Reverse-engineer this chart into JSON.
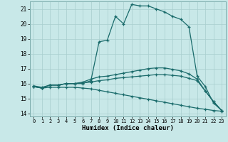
{
  "xlabel": "Humidex (Indice chaleur)",
  "background_color": "#c8e8e8",
  "grid_color": "#a8cece",
  "line_color": "#1a6b6b",
  "xlim": [
    -0.5,
    23.5
  ],
  "ylim": [
    13.8,
    21.5
  ],
  "yticks": [
    14,
    15,
    16,
    17,
    18,
    19,
    20,
    21
  ],
  "xticks": [
    0,
    1,
    2,
    3,
    4,
    5,
    6,
    7,
    8,
    9,
    10,
    11,
    12,
    13,
    14,
    15,
    16,
    17,
    18,
    19,
    20,
    21,
    22,
    23
  ],
  "series": [
    {
      "x": [
        0,
        1,
        2,
        3,
        4,
        5,
        6,
        7,
        8,
        9,
        10,
        11,
        12,
        13,
        14,
        15,
        16,
        17,
        18,
        19,
        20,
        21,
        22,
        23
      ],
      "y": [
        15.8,
        15.7,
        15.9,
        15.9,
        16.0,
        16.0,
        16.0,
        16.2,
        18.8,
        18.9,
        20.5,
        20.0,
        21.3,
        21.2,
        21.2,
        21.0,
        20.8,
        20.5,
        20.3,
        19.8,
        16.5,
        15.8,
        14.7,
        14.2
      ]
    },
    {
      "x": [
        0,
        1,
        2,
        3,
        4,
        5,
        6,
        7,
        8,
        9,
        10,
        11,
        12,
        13,
        14,
        15,
        16,
        17,
        18,
        19,
        20,
        21,
        22,
        23
      ],
      "y": [
        15.8,
        15.7,
        15.9,
        15.9,
        16.0,
        16.0,
        16.1,
        16.3,
        16.45,
        16.5,
        16.6,
        16.7,
        16.8,
        16.9,
        17.0,
        17.05,
        17.05,
        16.95,
        16.85,
        16.65,
        16.3,
        15.5,
        14.8,
        14.2
      ]
    },
    {
      "x": [
        0,
        1,
        2,
        3,
        4,
        5,
        6,
        7,
        8,
        9,
        10,
        11,
        12,
        13,
        14,
        15,
        16,
        17,
        18,
        19,
        20,
        21,
        22,
        23
      ],
      "y": [
        15.85,
        15.75,
        15.9,
        15.9,
        16.0,
        16.0,
        16.05,
        16.1,
        16.2,
        16.25,
        16.35,
        16.4,
        16.45,
        16.5,
        16.55,
        16.6,
        16.6,
        16.55,
        16.5,
        16.35,
        16.2,
        15.5,
        14.8,
        14.2
      ]
    },
    {
      "x": [
        0,
        1,
        2,
        3,
        4,
        5,
        6,
        7,
        8,
        9,
        10,
        11,
        12,
        13,
        14,
        15,
        16,
        17,
        18,
        19,
        20,
        21,
        22,
        23
      ],
      "y": [
        15.8,
        15.7,
        15.75,
        15.75,
        15.75,
        15.75,
        15.7,
        15.65,
        15.55,
        15.45,
        15.35,
        15.25,
        15.15,
        15.05,
        14.95,
        14.85,
        14.75,
        14.65,
        14.55,
        14.45,
        14.35,
        14.28,
        14.2,
        14.15
      ]
    }
  ]
}
